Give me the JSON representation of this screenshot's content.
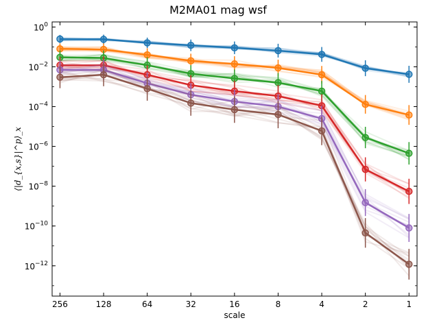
{
  "chart_data": {
    "type": "line",
    "title": "M2MA01 mag wsf",
    "xlabel": "scale",
    "ylabel": "⟨|d_{x,s}|^p⟩_x",
    "x_scale": "log2-reversed",
    "y_scale": "log",
    "x_ticks": [
      "256",
      "128",
      "64",
      "32",
      "16",
      "8",
      "4",
      "2",
      "1"
    ],
    "y_ticks": [
      {
        "value": 1,
        "base": "10",
        "exp": "0"
      },
      {
        "value": 0.01,
        "base": "10",
        "exp": "−2"
      },
      {
        "value": 0.0001,
        "base": "10",
        "exp": "−4"
      },
      {
        "value": 1e-06,
        "base": "10",
        "exp": "−6"
      },
      {
        "value": 1e-08,
        "base": "10",
        "exp": "−8"
      },
      {
        "value": 1e-10,
        "base": "10",
        "exp": "−10"
      },
      {
        "value": 1e-12,
        "base": "10",
        "exp": "−12"
      }
    ],
    "ylim": [
      3e-14,
      1.8
    ],
    "xlim": [
      290,
      0.88
    ],
    "grid": false,
    "legend": "none",
    "x": [
      256,
      128,
      64,
      32,
      16,
      8,
      4,
      2,
      1
    ],
    "series": [
      {
        "color": "#1f77b4",
        "values": [
          0.25,
          0.24,
          0.16,
          0.12,
          0.09,
          0.065,
          0.042,
          0.0085,
          0.0042
        ]
      },
      {
        "color": "#ff7f0e",
        "values": [
          0.08,
          0.075,
          0.04,
          0.02,
          0.014,
          0.0088,
          0.004,
          0.00013,
          3.8e-05
        ]
      },
      {
        "color": "#2ca02c",
        "values": [
          0.03,
          0.028,
          0.012,
          0.0045,
          0.0026,
          0.0016,
          0.0006,
          2.8e-06,
          4.5e-07
        ]
      },
      {
        "color": "#d62728",
        "values": [
          0.012,
          0.012,
          0.004,
          0.0012,
          0.0006,
          0.00034,
          0.00011,
          7e-08,
          5.5e-09
        ]
      },
      {
        "color": "#9467bd",
        "values": [
          0.007,
          0.007,
          0.0015,
          0.0004,
          0.00018,
          0.0001,
          2.5e-05,
          1.5e-09,
          8e-11
        ]
      },
      {
        "color": "#8c564b",
        "values": [
          0.003,
          0.004,
          0.0008,
          0.00015,
          7e-05,
          4e-05,
          6e-06,
          4.5e-11,
          1.2e-12
        ]
      }
    ]
  }
}
